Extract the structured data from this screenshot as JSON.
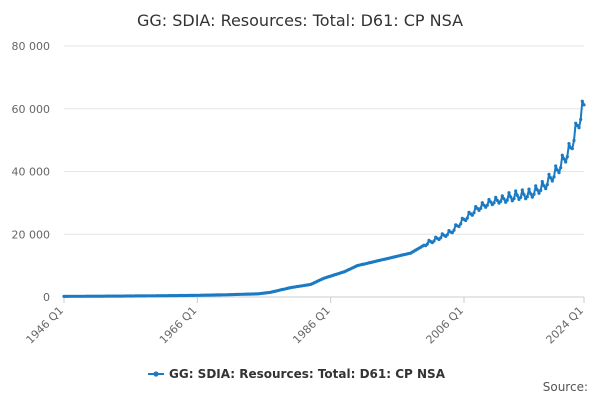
{
  "chart_data": {
    "type": "line",
    "title": "GG: SDIA: Resources: Total: D61: CP NSA",
    "xlabel": "",
    "ylabel": "",
    "ylim": [
      0,
      80000
    ],
    "yticks": [
      0,
      20000,
      40000,
      60000,
      80000
    ],
    "ytick_labels": [
      "0",
      "20 000",
      "40 000",
      "60 000",
      "80 000"
    ],
    "xlim": [
      1946,
      2024
    ],
    "xticks": [
      1946,
      1966,
      1986,
      2006,
      2024
    ],
    "xtick_labels": [
      "1946 Q1",
      "1966 Q1",
      "1986 Q1",
      "2006 Q1",
      "2024 Q1"
    ],
    "grid": true,
    "legend_position": "bottom",
    "colors": {
      "series": "#1a7ac4",
      "grid": "#e6e6e6",
      "text": "#666666"
    },
    "series": [
      {
        "name": "GG: SDIA: Resources: Total: D61: CP NSA",
        "x": [
          1946,
          1950,
          1955,
          1960,
          1965,
          1970,
          1975,
          1977,
          1980,
          1983,
          1985,
          1988,
          1990,
          1993,
          1995,
          1998,
          2000,
          2002,
          2004,
          2006,
          2008,
          2010,
          2012,
          2014,
          2016,
          2018,
          2020,
          2022,
          2023,
          2024
        ],
        "values": [
          200,
          250,
          300,
          400,
          500,
          700,
          1000,
          1500,
          3000,
          4000,
          6000,
          8000,
          10000,
          11500,
          12500,
          14000,
          16500,
          18500,
          20500,
          24500,
          28000,
          30000,
          31000,
          32000,
          32500,
          35000,
          40000,
          47000,
          54000,
          60500
        ]
      }
    ]
  },
  "source_label": "Source:"
}
